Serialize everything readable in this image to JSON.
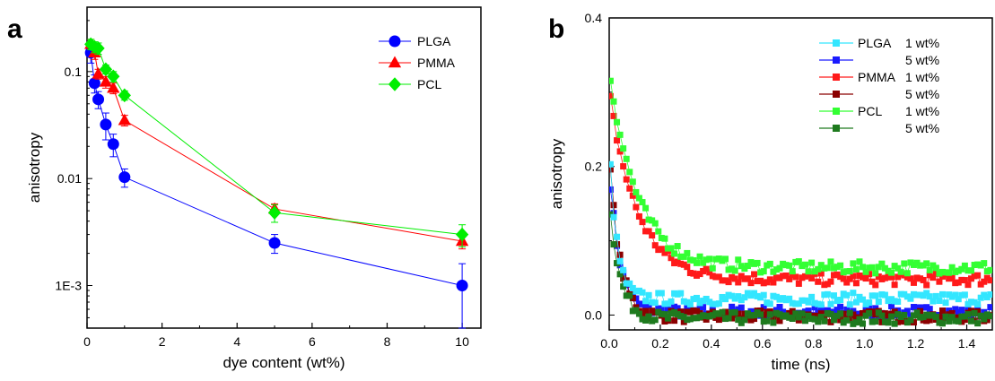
{
  "chart_data": [
    {
      "panel_label": "a",
      "type": "scatter",
      "xlabel": "dye content (wt%)",
      "ylabel": "anisotropy",
      "xlim": [
        0,
        10.5
      ],
      "ylim": [
        0.0004,
        0.4
      ],
      "yscale": "log",
      "x_ticks": [
        0,
        2,
        4,
        6,
        8,
        10
      ],
      "y_ticks": [
        {
          "v": 0.1,
          "label": "0.1"
        },
        {
          "v": 0.01,
          "label": "0.01"
        },
        {
          "v": 0.001,
          "label": "1E-3"
        }
      ],
      "legend_position": "top-right",
      "series": [
        {
          "name": "PLGA",
          "color": "#0000ff",
          "marker": "circle",
          "x": [
            0.1,
            0.2,
            0.3,
            0.5,
            0.7,
            1,
            5,
            10
          ],
          "y": [
            0.15,
            0.078,
            0.055,
            0.032,
            0.021,
            0.0103,
            0.0025,
            0.001
          ],
          "err": [
            0.03,
            0.015,
            0.01,
            0.009,
            0.005,
            0.002,
            0.0005,
            0.0006
          ]
        },
        {
          "name": "PMMA",
          "color": "#ff0000",
          "marker": "triangle",
          "x": [
            0.1,
            0.2,
            0.3,
            0.5,
            0.7,
            1,
            5,
            10
          ],
          "y": [
            0.18,
            0.15,
            0.095,
            0.08,
            0.07,
            0.035,
            0.0052,
            0.0026
          ],
          "err": [
            0.02,
            0.02,
            0.01,
            0.01,
            0.008,
            0.004,
            0.0006,
            0.0004
          ]
        },
        {
          "name": "PCL",
          "color": "#00ee00",
          "marker": "diamond",
          "x": [
            0.1,
            0.2,
            0.3,
            0.5,
            0.7,
            1,
            5,
            10
          ],
          "y": [
            0.18,
            0.17,
            0.165,
            0.105,
            0.09,
            0.06,
            0.0048,
            0.003
          ],
          "err": [
            0.02,
            0.02,
            0.02,
            0.01,
            0.01,
            0.006,
            0.0009,
            0.0007
          ]
        }
      ]
    },
    {
      "panel_label": "b",
      "type": "scatter",
      "xlabel": "time (ns)",
      "ylabel": "anisotropy",
      "xlim": [
        0,
        1.5
      ],
      "ylim": [
        -0.02,
        0.4
      ],
      "x_ticks": [
        {
          "v": 0,
          "label": "0.0"
        },
        {
          "v": 0.2,
          "label": "0.2"
        },
        {
          "v": 0.4,
          "label": "0.4"
        },
        {
          "v": 0.6,
          "label": "0.6"
        },
        {
          "v": 0.8,
          "label": "0.8"
        },
        {
          "v": 1.0,
          "label": "1.0"
        },
        {
          "v": 1.2,
          "label": "1.2"
        },
        {
          "v": 1.4,
          "label": "1.4"
        }
      ],
      "y_ticks": [
        {
          "v": 0,
          "label": "0.0"
        },
        {
          "v": 0.2,
          "label": "0.2"
        },
        {
          "v": 0.4,
          "label": "0.4"
        }
      ],
      "legend_position": "top-right",
      "series": [
        {
          "name": "PLGA",
          "conc": "1 wt%",
          "color": "#33e6ff",
          "a0": 0.23,
          "tau": 0.03,
          "plateau": 0.022
        },
        {
          "name": "",
          "conc": "5 wt%",
          "color": "#1a1aff",
          "a0": 0.2,
          "tau": 0.04,
          "plateau": 0.004
        },
        {
          "name": "PMMA",
          "conc": "1 wt%",
          "color": "#ff1a1a",
          "a0": 0.3,
          "tau": 0.11,
          "plateau": 0.048
        },
        {
          "name": "",
          "conc": "5 wt%",
          "color": "#8b0000",
          "a0": 0.22,
          "tau": 0.04,
          "plateau": -0.002
        },
        {
          "name": "PCL",
          "conc": "1 wt%",
          "color": "#33ff33",
          "a0": 0.33,
          "tau": 0.11,
          "plateau": 0.064
        },
        {
          "name": "",
          "conc": "5 wt%",
          "color": "#1e7a1e",
          "a0": 0.16,
          "tau": 0.04,
          "plateau": -0.004
        }
      ]
    }
  ]
}
